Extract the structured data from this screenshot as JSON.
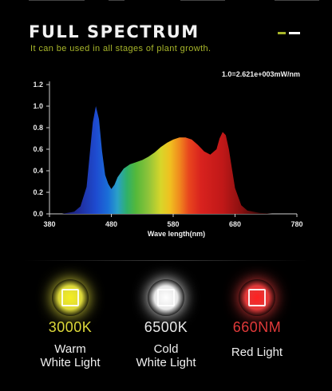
{
  "header": {
    "title": "FULL  SPECTRUM",
    "subtitle": "It can be used in all stages of plant growth.",
    "accent_color": "#a8b62a"
  },
  "chart_data": {
    "type": "area",
    "title": "",
    "annotation": "1.0=2.621e+003mW/nm",
    "xlabel": "Wave length(nm)",
    "ylabel": "",
    "xlim": [
      380,
      780
    ],
    "ylim": [
      0,
      1.2
    ],
    "x_ticks": [
      "380",
      "480",
      "580",
      "680",
      "780"
    ],
    "y_ticks": [
      "0.0",
      "0.2",
      "0.4",
      "0.6",
      "0.8",
      "1.0",
      "1.2"
    ],
    "fill": "visible-spectrum color gradient",
    "x": [
      380,
      400,
      420,
      430,
      440,
      445,
      450,
      455,
      460,
      465,
      470,
      475,
      480,
      485,
      490,
      500,
      510,
      520,
      530,
      540,
      550,
      560,
      570,
      580,
      590,
      600,
      610,
      620,
      630,
      640,
      650,
      655,
      660,
      665,
      670,
      675,
      680,
      690,
      700,
      720,
      740,
      760,
      780
    ],
    "y": [
      0.0,
      0.0,
      0.02,
      0.07,
      0.25,
      0.55,
      0.85,
      1.0,
      0.88,
      0.58,
      0.36,
      0.28,
      0.23,
      0.27,
      0.34,
      0.42,
      0.46,
      0.48,
      0.5,
      0.53,
      0.57,
      0.62,
      0.66,
      0.69,
      0.71,
      0.71,
      0.69,
      0.64,
      0.58,
      0.55,
      0.6,
      0.7,
      0.76,
      0.73,
      0.6,
      0.42,
      0.24,
      0.08,
      0.03,
      0.01,
      0.0,
      0.0,
      0.0
    ]
  },
  "lights": [
    {
      "value": "3000K",
      "line1": "Warm",
      "line2": "White Light",
      "color": "#dcd83a",
      "glow": "#f5ef20"
    },
    {
      "value": "6500K",
      "line1": "Cold",
      "line2": "White Light",
      "color": "#e8e8e8",
      "glow": "#ffffff"
    },
    {
      "value": "660NM",
      "line1": "Red Light",
      "line2": "",
      "color": "#e03a3a",
      "glow": "#ff2020"
    }
  ],
  "dashes": [
    "#a8b62a",
    "#ffffff"
  ]
}
